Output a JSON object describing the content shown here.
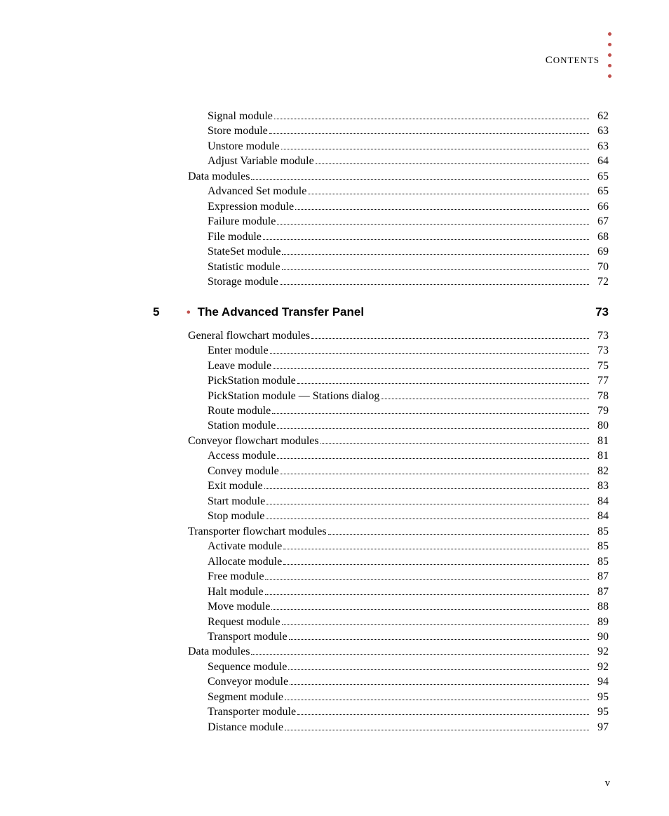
{
  "header": {
    "label_small": "ONTENTS",
    "label_cap": "C"
  },
  "colors": {
    "accent": "#c0504d",
    "text": "#000000",
    "background": "#ffffff"
  },
  "toc_pre": [
    {
      "level": 2,
      "label": "Signal module",
      "page": "62"
    },
    {
      "level": 2,
      "label": "Store module",
      "page": "63"
    },
    {
      "level": 2,
      "label": "Unstore module",
      "page": "63"
    },
    {
      "level": 2,
      "label": "Adjust Variable module",
      "page": "64"
    },
    {
      "level": 1,
      "label": "Data modules",
      "page": "65"
    },
    {
      "level": 2,
      "label": "Advanced Set module",
      "page": "65"
    },
    {
      "level": 2,
      "label": "Expression module",
      "page": "66"
    },
    {
      "level": 2,
      "label": "Failure module",
      "page": "67"
    },
    {
      "level": 2,
      "label": "File module",
      "page": "68"
    },
    {
      "level": 2,
      "label": "StateSet module",
      "page": "69"
    },
    {
      "level": 2,
      "label": "Statistic module",
      "page": "70"
    },
    {
      "level": 2,
      "label": "Storage module",
      "page": "72"
    }
  ],
  "chapter": {
    "number": "5",
    "bullet": "•",
    "title": "The Advanced Transfer Panel",
    "page": "73"
  },
  "toc_post": [
    {
      "level": 1,
      "label": "General flowchart modules",
      "page": "73"
    },
    {
      "level": 2,
      "label": "Enter module",
      "page": "73"
    },
    {
      "level": 2,
      "label": "Leave module",
      "page": "75"
    },
    {
      "level": 2,
      "label": "PickStation module",
      "page": "77"
    },
    {
      "level": 2,
      "label": "PickStation module — Stations dialog",
      "page": "78"
    },
    {
      "level": 2,
      "label": "Route module",
      "page": "79"
    },
    {
      "level": 2,
      "label": "Station module",
      "page": "80"
    },
    {
      "level": 1,
      "label": "Conveyor flowchart modules",
      "page": "81"
    },
    {
      "level": 2,
      "label": "Access module",
      "page": "81"
    },
    {
      "level": 2,
      "label": "Convey module",
      "page": "82"
    },
    {
      "level": 2,
      "label": "Exit module",
      "page": "83"
    },
    {
      "level": 2,
      "label": "Start module",
      "page": "84"
    },
    {
      "level": 2,
      "label": "Stop module",
      "page": "84"
    },
    {
      "level": 1,
      "label": "Transporter flowchart modules",
      "page": "85"
    },
    {
      "level": 2,
      "label": "Activate module",
      "page": "85"
    },
    {
      "level": 2,
      "label": "Allocate module",
      "page": "85"
    },
    {
      "level": 2,
      "label": "Free module",
      "page": "87"
    },
    {
      "level": 2,
      "label": "Halt module",
      "page": "87"
    },
    {
      "level": 2,
      "label": "Move module",
      "page": "88"
    },
    {
      "level": 2,
      "label": "Request module",
      "page": "89"
    },
    {
      "level": 2,
      "label": "Transport module",
      "page": "90"
    },
    {
      "level": 1,
      "label": "Data modules",
      "page": "92"
    },
    {
      "level": 2,
      "label": "Sequence module",
      "page": "92"
    },
    {
      "level": 2,
      "label": "Conveyor module",
      "page": "94"
    },
    {
      "level": 2,
      "label": "Segment module",
      "page": "95"
    },
    {
      "level": 2,
      "label": "Transporter module",
      "page": "95"
    },
    {
      "level": 2,
      "label": "Distance module",
      "page": "97"
    }
  ],
  "page_number": "v"
}
